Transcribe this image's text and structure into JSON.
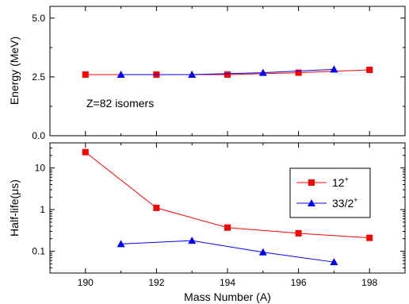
{
  "chart_data": [
    {
      "panel": "top",
      "type": "line",
      "ylabel": "Energy (MeV)",
      "xlabel": "",
      "annotation": "Z=82 isomers",
      "xlim": [
        189,
        199
      ],
      "ylim": [
        0,
        5.5
      ],
      "yscale": "linear",
      "yticks": [
        0.0,
        2.5,
        5.0
      ],
      "ytick_labels": [
        "0.0",
        "2.5",
        "5.0"
      ],
      "series": [
        {
          "marker": "square",
          "color": "#ff0000",
          "x": [
            190,
            192,
            194,
            196,
            198
          ],
          "y": [
            2.6,
            2.6,
            2.6,
            2.68,
            2.8
          ]
        },
        {
          "marker": "triangle",
          "color": "#0000ff",
          "x": [
            191,
            193,
            195,
            197
          ],
          "y": [
            2.6,
            2.6,
            2.68,
            2.82
          ]
        }
      ]
    },
    {
      "panel": "bottom",
      "type": "line",
      "ylabel": "Half-life(",
      "ylabel_unit": "μs",
      "ylabel_close": ")",
      "xlabel": "Mass Number (A)",
      "xlim": [
        189,
        199
      ],
      "ylim": [
        0.03,
        40
      ],
      "yscale": "log",
      "yticks": [
        0.1,
        1,
        10
      ],
      "ytick_labels": [
        "0.1",
        "1",
        "10"
      ],
      "xticks": [
        190,
        192,
        194,
        196,
        198
      ],
      "xtick_labels": [
        "190",
        "192",
        "194",
        "196",
        "198"
      ],
      "legend_position": "right",
      "series": [
        {
          "name_base": "12",
          "name_sup": "+",
          "marker": "square",
          "color": "#ff0000",
          "x": [
            190,
            192,
            194,
            196,
            198
          ],
          "y": [
            24,
            1.1,
            0.37,
            0.27,
            0.21
          ]
        },
        {
          "name_base": "33/2",
          "name_sup": "+",
          "marker": "triangle",
          "color": "#0000ff",
          "x": [
            191,
            193,
            195,
            197
          ],
          "y": [
            0.15,
            0.18,
            0.095,
            0.055
          ]
        }
      ]
    }
  ]
}
